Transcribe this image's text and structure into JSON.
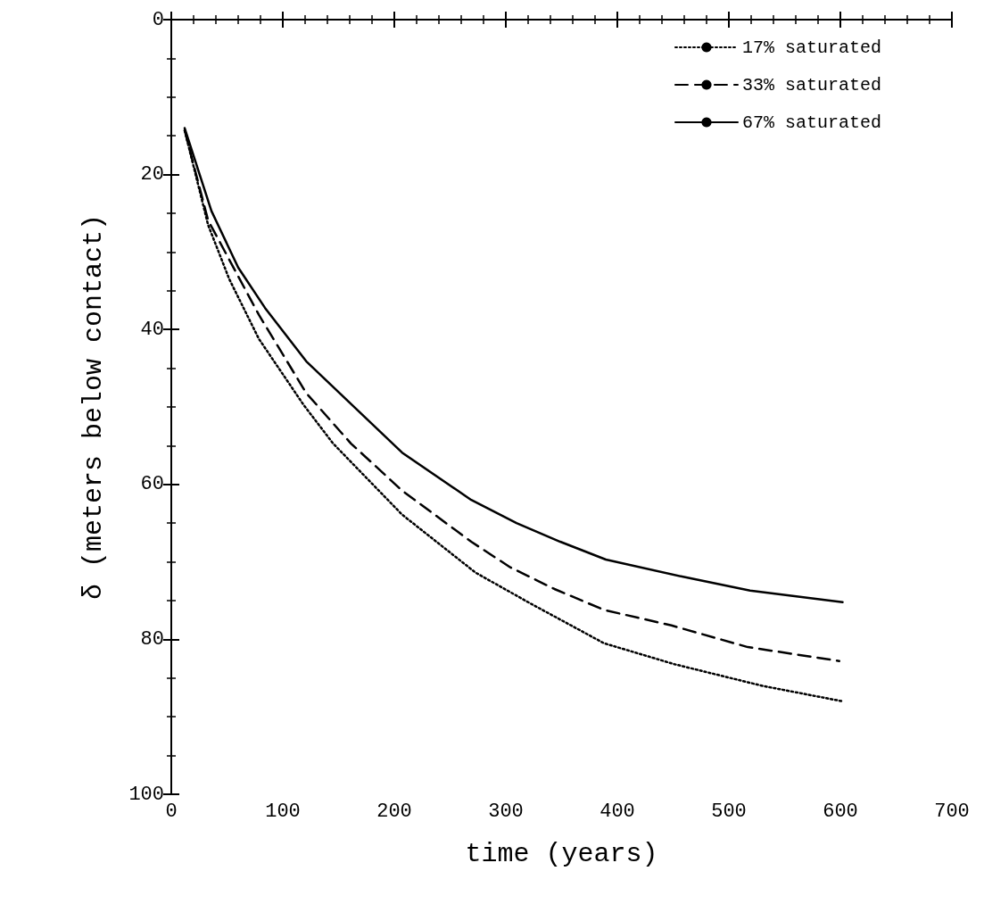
{
  "chart_data": {
    "type": "line",
    "xlabel": "time (years)",
    "ylabel": "δ (meters below contact)",
    "xlim": [
      0,
      700
    ],
    "xticks": [
      0,
      100,
      200,
      300,
      400,
      500,
      600,
      700
    ],
    "ylim": [
      100,
      0
    ],
    "yticks": [
      0,
      20,
      40,
      60,
      80,
      100
    ],
    "grid": false,
    "legend": "top right",
    "marker": "none",
    "series": [
      {
        "name": "17% saturated",
        "color": "#000000",
        "line_style": "dotted",
        "x": [
          12,
          33,
          52,
          78.5,
          118.5,
          145,
          207,
          273,
          322.5,
          388,
          451,
          530,
          602
        ],
        "values": [
          14.3,
          26.5,
          33.5,
          41.2,
          49.7,
          54.7,
          63.9,
          71.4,
          75.4,
          80.5,
          83.2,
          86,
          88
        ]
      },
      {
        "name": "33% saturated",
        "color": "#000000",
        "line_style": "dashed",
        "x": [
          12,
          33,
          78.5,
          121,
          161,
          207,
          269,
          304,
          343.6,
          388,
          448.5,
          517,
          599
        ],
        "values": [
          14.3,
          25.9,
          38.1,
          48.2,
          54.7,
          60.8,
          67.4,
          70.7,
          73.5,
          76.2,
          78.2,
          81,
          82.8
        ]
      },
      {
        "name": "67% saturated",
        "color": "#000000",
        "line_style": "solid",
        "x": [
          12,
          36,
          60,
          84,
          121,
          207,
          269,
          309.6,
          348.8,
          389.7,
          458,
          519,
          602
        ],
        "values": [
          14,
          24.7,
          32,
          37.2,
          44.1,
          55.9,
          62,
          65,
          67.4,
          69.7,
          71.9,
          73.7,
          75.2
        ]
      }
    ]
  }
}
